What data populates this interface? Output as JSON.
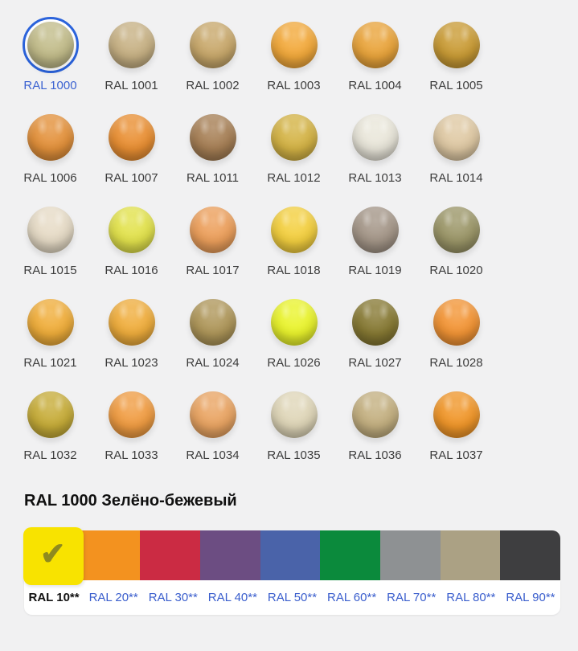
{
  "colors": {
    "page_bg": "#f1f1f2",
    "selection_ring": "#2B63DB",
    "link_blue": "#3A5ECD",
    "label_dark": "#3C3C3C",
    "heading": "#101010",
    "checkmark": "#8F8A1F"
  },
  "icons": {
    "checkmark": "✔"
  },
  "ral_grid": {
    "items": [
      {
        "code": "RAL 1000",
        "color": "#C2BC8A",
        "selected": true
      },
      {
        "code": "RAL 1001",
        "color": "#C7B184",
        "selected": false
      },
      {
        "code": "RAL 1002",
        "color": "#C8A86B",
        "selected": false
      },
      {
        "code": "RAL 1003",
        "color": "#F2A93B",
        "selected": false
      },
      {
        "code": "RAL 1004",
        "color": "#E9A43B",
        "selected": false
      },
      {
        "code": "RAL 1005",
        "color": "#C99B35",
        "selected": false
      },
      {
        "code": "RAL 1006",
        "color": "#E3913B",
        "selected": false
      },
      {
        "code": "RAL 1007",
        "color": "#E98F33",
        "selected": false
      },
      {
        "code": "RAL 1011",
        "color": "#A67F55",
        "selected": false
      },
      {
        "code": "RAL 1012",
        "color": "#D4B345",
        "selected": false
      },
      {
        "code": "RAL 1013",
        "color": "#E9E6DA",
        "selected": false
      },
      {
        "code": "RAL 1014",
        "color": "#DFC9A4",
        "selected": false
      },
      {
        "code": "RAL 1015",
        "color": "#E6DBC6",
        "selected": false
      },
      {
        "code": "RAL 1016",
        "color": "#E2E24C",
        "selected": false
      },
      {
        "code": "RAL 1017",
        "color": "#EC9F5B",
        "selected": false
      },
      {
        "code": "RAL 1018",
        "color": "#F3CF3F",
        "selected": false
      },
      {
        "code": "RAL 1019",
        "color": "#A49688",
        "selected": false
      },
      {
        "code": "RAL 1020",
        "color": "#9B9668",
        "selected": false
      },
      {
        "code": "RAL 1021",
        "color": "#EFAD3A",
        "selected": false
      },
      {
        "code": "RAL 1023",
        "color": "#EFAD3C",
        "selected": false
      },
      {
        "code": "RAL 1024",
        "color": "#AE9659",
        "selected": false
      },
      {
        "code": "RAL 1026",
        "color": "#E9F32C",
        "selected": false
      },
      {
        "code": "RAL 1027",
        "color": "#867933",
        "selected": false
      },
      {
        "code": "RAL 1028",
        "color": "#F29435",
        "selected": false
      },
      {
        "code": "RAL 1032",
        "color": "#C6AC38",
        "selected": false
      },
      {
        "code": "RAL 1033",
        "color": "#F09C42",
        "selected": false
      },
      {
        "code": "RAL 1034",
        "color": "#E9A462",
        "selected": false
      },
      {
        "code": "RAL 1035",
        "color": "#DFD6B8",
        "selected": false
      },
      {
        "code": "RAL 1036",
        "color": "#C3AF80",
        "selected": false
      },
      {
        "code": "RAL 1037",
        "color": "#F09629",
        "selected": false
      }
    ]
  },
  "detail": {
    "title": "RAL 1000 Зелёно-бежевый"
  },
  "group_tabs": {
    "items": [
      {
        "label": "RAL 10**",
        "color": "#F8E300",
        "active": true
      },
      {
        "label": "RAL 20**",
        "color": "#F3921F",
        "active": false
      },
      {
        "label": "RAL 30**",
        "color": "#CB2B43",
        "active": false
      },
      {
        "label": "RAL 40**",
        "color": "#6C4D82",
        "active": false
      },
      {
        "label": "RAL 50**",
        "color": "#4A63A9",
        "active": false
      },
      {
        "label": "RAL 60**",
        "color": "#0B8A3C",
        "active": false
      },
      {
        "label": "RAL 70**",
        "color": "#8E9193",
        "active": false
      },
      {
        "label": "RAL 80**",
        "color": "#ABA184",
        "active": false
      },
      {
        "label": "RAL 90**",
        "color": "#3E3E40",
        "active": false
      }
    ]
  }
}
